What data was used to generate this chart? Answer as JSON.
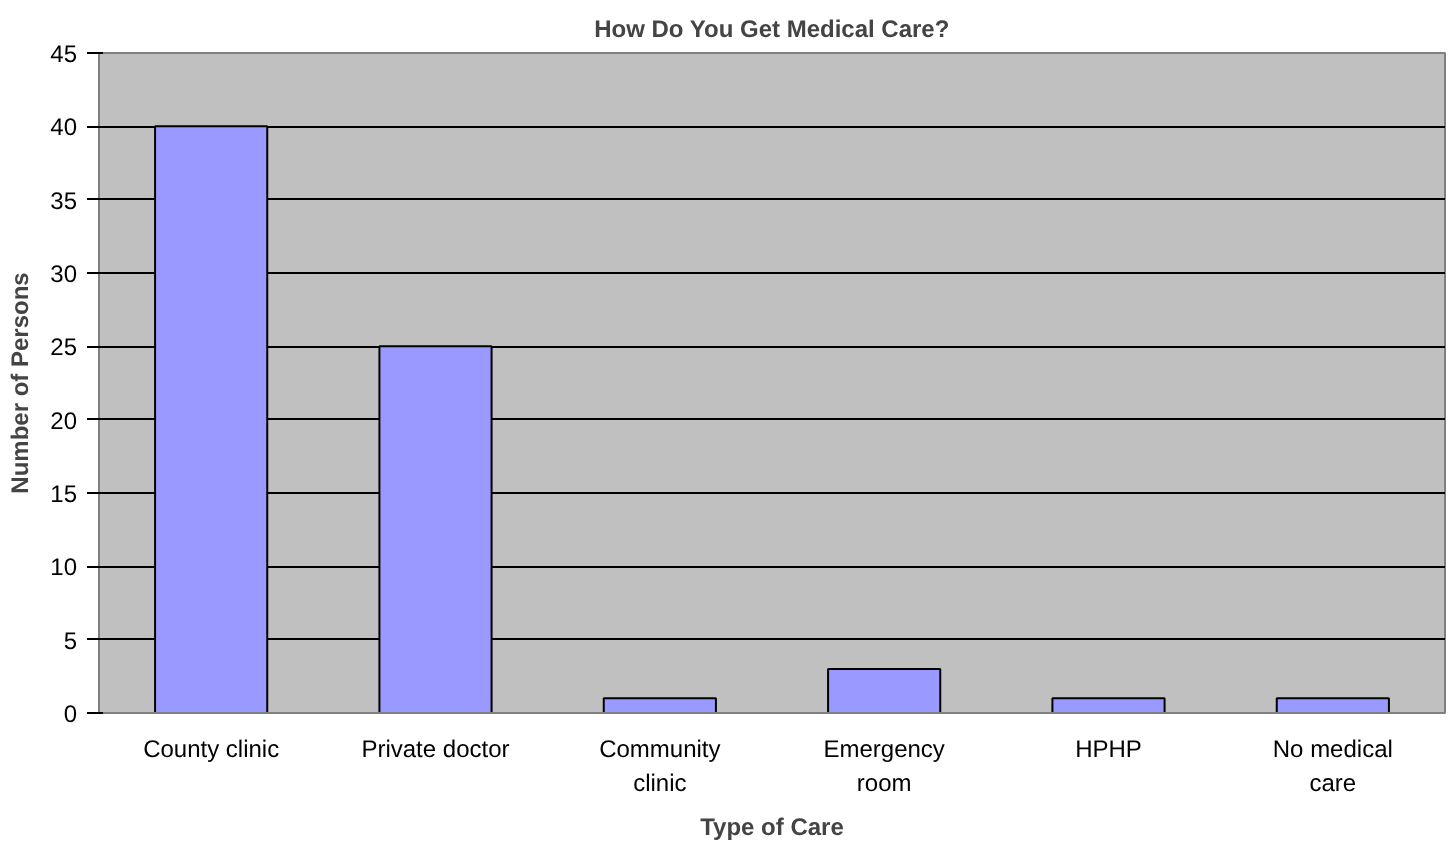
{
  "chart_data": {
    "type": "bar",
    "title": "How Do You Get Medical Care?",
    "xlabel": "Type of Care",
    "ylabel": "Number of Persons",
    "categories": [
      "County clinic",
      "Private doctor",
      "Community clinic",
      "Emergency room",
      "HPHP",
      "No medical care"
    ],
    "values": [
      40,
      25,
      1,
      3,
      1,
      1
    ],
    "color": "#9999ff",
    "ylim": [
      0,
      45
    ],
    "yticks": [
      0,
      5,
      10,
      15,
      20,
      25,
      30,
      35,
      40,
      45
    ],
    "grid": "y"
  }
}
